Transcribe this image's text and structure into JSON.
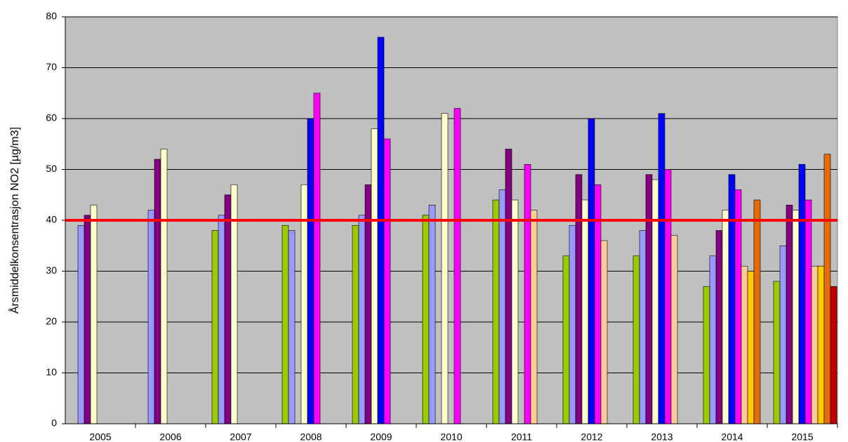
{
  "chart_data": {
    "type": "bar",
    "y_label": "Årsmiddelkonsentrasjon NO2 [µg/m3]",
    "categories": [
      "2005",
      "2006",
      "2007",
      "2008",
      "2009",
      "2010",
      "2011",
      "2012",
      "2013",
      "2014",
      "2015"
    ],
    "series": [
      {
        "color": "#99cc00",
        "values": [
          null,
          null,
          38,
          39,
          39,
          41,
          44,
          33,
          33,
          27,
          28
        ]
      },
      {
        "color": "#9999ff",
        "values": [
          39,
          42,
          41,
          38,
          41,
          43,
          46,
          39,
          38,
          33,
          35
        ]
      },
      {
        "color": "#800080",
        "values": [
          41,
          52,
          45,
          null,
          47,
          null,
          54,
          49,
          49,
          38,
          43
        ]
      },
      {
        "color": "#ffffcc",
        "values": [
          43,
          54,
          47,
          47,
          58,
          61,
          44,
          44,
          48,
          42,
          42
        ]
      },
      {
        "color": "#0000ff",
        "values": [
          null,
          null,
          null,
          60,
          76,
          null,
          null,
          60,
          61,
          49,
          51
        ]
      },
      {
        "color": "#ff00ff",
        "values": [
          null,
          null,
          null,
          65,
          56,
          62,
          51,
          47,
          50,
          46,
          44
        ]
      },
      {
        "color": "#ffcc99",
        "values": [
          null,
          null,
          null,
          null,
          null,
          null,
          42,
          36,
          37,
          31,
          31
        ]
      },
      {
        "color": "#ffcc00",
        "values": [
          null,
          null,
          null,
          null,
          null,
          null,
          null,
          null,
          null,
          30,
          31
        ]
      },
      {
        "color": "#e46c0a",
        "values": [
          null,
          null,
          null,
          null,
          null,
          null,
          null,
          null,
          null,
          44,
          53
        ]
      },
      {
        "color": "#c00000",
        "values": [
          null,
          null,
          null,
          null,
          null,
          null,
          null,
          null,
          null,
          null,
          27
        ]
      }
    ],
    "limit": 40,
    "limit_color": "#ff0000",
    "ylim": [
      0,
      80
    ],
    "yticks": [
      0,
      10,
      20,
      30,
      40,
      50,
      60,
      70,
      80
    ],
    "grid": true,
    "plot_background": "#c0c0c0"
  }
}
